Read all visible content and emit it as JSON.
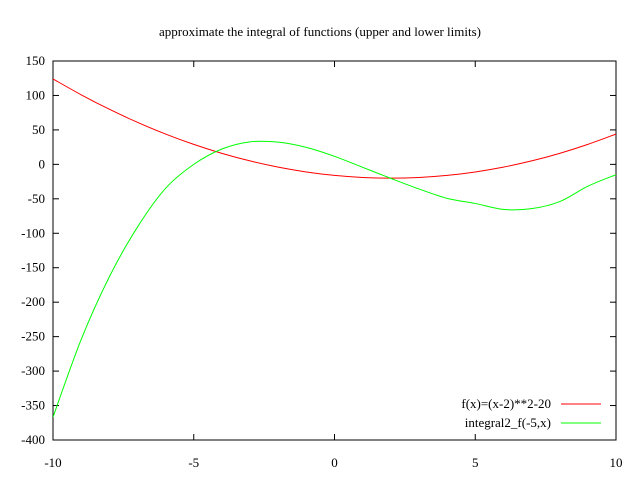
{
  "chart_data": {
    "type": "line",
    "title": "approximate the integral of functions (upper and lower limits)",
    "xlabel": "",
    "ylabel": "",
    "xlim": [
      -10,
      10
    ],
    "ylim": [
      -400,
      150
    ],
    "grid": false,
    "legend_position": "bottom-right",
    "x_ticks": [
      -10,
      -5,
      0,
      5,
      10
    ],
    "x_tick_labels": [
      "-10",
      "-5",
      "0",
      "5",
      "10"
    ],
    "y_ticks": [
      -400,
      -350,
      -300,
      -250,
      -200,
      -150,
      -100,
      -50,
      0,
      50,
      100,
      150
    ],
    "y_tick_labels": [
      "-400",
      "-350",
      "-300",
      "-250",
      "-200",
      "-150",
      "-100",
      "-50",
      "0",
      "50",
      "100",
      "150"
    ],
    "series": [
      {
        "name": "f(x)=(x-2)**2-20",
        "color": "#ff0000",
        "x": [
          -10,
          -9,
          -8,
          -7,
          -6,
          -5,
          -4,
          -3,
          -2,
          -1,
          0,
          1,
          2,
          3,
          4,
          5,
          6,
          7,
          8,
          9,
          10
        ],
        "y": [
          124,
          101,
          80,
          61,
          44,
          29,
          16,
          5,
          -4,
          -11,
          -16,
          -19,
          -20,
          -19,
          -16,
          -11,
          -4,
          5,
          16,
          29,
          44
        ]
      },
      {
        "name": "integral2_f(-5,x)",
        "color": "#00ff00",
        "x": [
          -10,
          -9,
          -8,
          -7,
          -6,
          -5,
          -4,
          -3,
          -2,
          -1,
          0,
          1,
          2,
          3,
          4,
          5,
          6,
          7,
          8,
          9,
          10
        ],
        "y": [
          -366.7,
          -254.3,
          -163.3,
          -91.0,
          -34.7,
          0,
          22.3,
          32.7,
          32.3,
          24.7,
          11.7,
          -4.3,
          -20.3,
          -35.7,
          -49.3,
          -56.7,
          -65.3,
          -64.3,
          -54.0,
          -31.7,
          -15.0
        ]
      }
    ]
  }
}
